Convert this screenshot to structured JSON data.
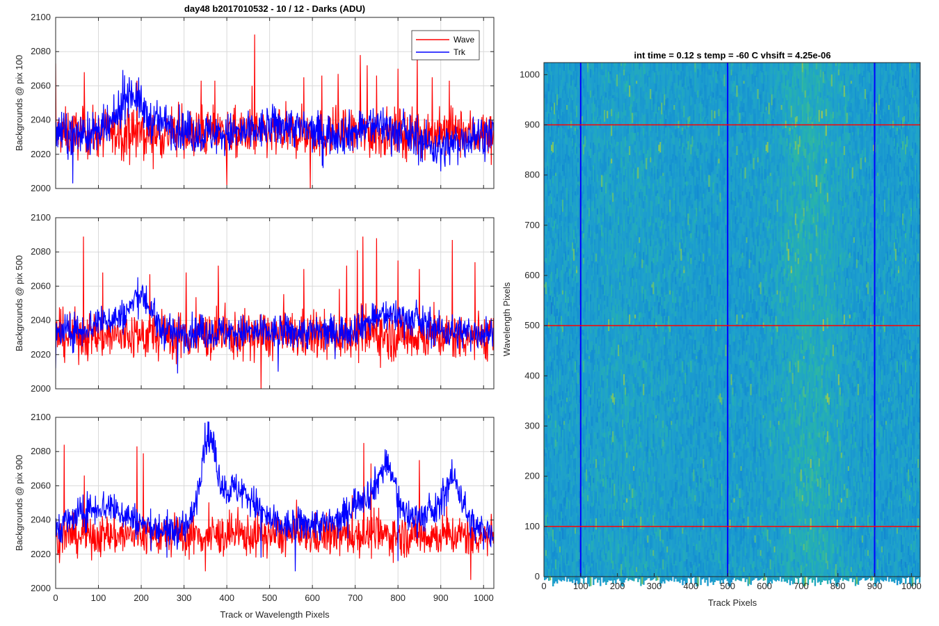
{
  "figure_title": "day48 b2017010532 - 10 / 12 - Darks (ADU)",
  "chart_data": [
    {
      "type": "line",
      "ylabel": "Backgrounds @ pix 100",
      "xlabel": "",
      "xlim": [
        0,
        1024
      ],
      "ylim": [
        2000,
        2100
      ],
      "xticks": [
        0,
        100,
        200,
        300,
        400,
        500,
        600,
        700,
        800,
        900,
        1000
      ],
      "yticks": [
        2000,
        2020,
        2040,
        2060,
        2080,
        2100
      ],
      "grid": true,
      "legend": {
        "placement": "top-right",
        "entries": [
          "Wave",
          "Trk"
        ]
      },
      "series": [
        {
          "name": "Wave",
          "color": "#ff0000",
          "mean": 2032,
          "noise": 7,
          "spikes": [
            [
              0,
              2073
            ],
            [
              67,
              2068
            ],
            [
              190,
              2063
            ],
            [
              340,
              2063
            ],
            [
              372,
              2063
            ],
            [
              459,
              2060
            ],
            [
              465,
              2090
            ],
            [
              580,
              2065
            ],
            [
              622,
              2066
            ],
            [
              660,
              2067
            ],
            [
              712,
              2078
            ],
            [
              728,
              2072
            ],
            [
              750,
              2066
            ],
            [
              800,
              2070
            ],
            [
              845,
              2078
            ],
            [
              880,
              2065
            ],
            [
              920,
              2063
            ],
            [
              1024,
              2062
            ],
            [
              400,
              2002
            ],
            [
              595,
              2000
            ]
          ],
          "bumps": []
        },
        {
          "name": "Trk",
          "color": "#0000ff",
          "mean": 2032,
          "noise": 6,
          "spikes": [
            [
              40,
              2003
            ],
            [
              625,
              2012
            ],
            [
              900,
              2010
            ]
          ],
          "bumps": [
            [
              175,
              25,
              24
            ],
            [
              250,
              30,
              6
            ],
            [
              530,
              40,
              5
            ],
            [
              750,
              30,
              5
            ],
            [
              900,
              40,
              -8
            ]
          ]
        }
      ]
    },
    {
      "type": "line",
      "ylabel": "Backgrounds @ pix 500",
      "xlabel": "",
      "xlim": [
        0,
        1024
      ],
      "ylim": [
        2000,
        2100
      ],
      "xticks": [
        0,
        100,
        200,
        300,
        400,
        500,
        600,
        700,
        800,
        900,
        1000
      ],
      "yticks": [
        2000,
        2020,
        2040,
        2060,
        2080,
        2100
      ],
      "grid": true,
      "series": [
        {
          "name": "Wave",
          "color": "#ff0000",
          "mean": 2031,
          "noise": 7,
          "spikes": [
            [
              65,
              2089
            ],
            [
              110,
              2068
            ],
            [
              220,
              2067
            ],
            [
              305,
              2068
            ],
            [
              380,
              2072
            ],
            [
              480,
              2000
            ],
            [
              580,
              2070
            ],
            [
              680,
              2072
            ],
            [
              705,
              2081
            ],
            [
              718,
              2089
            ],
            [
              750,
              2088
            ],
            [
              800,
              2075
            ],
            [
              850,
              2070
            ],
            [
              927,
              2087
            ],
            [
              980,
              2074
            ],
            [
              1024,
              2062
            ]
          ],
          "bumps": []
        },
        {
          "name": "Trk",
          "color": "#0000ff",
          "mean": 2033,
          "noise": 5,
          "spikes": [
            [
              0,
              2012
            ],
            [
              285,
              2009
            ],
            [
              520,
              2010
            ]
          ],
          "bumps": [
            [
              200,
              22,
              20
            ],
            [
              130,
              40,
              8
            ],
            [
              760,
              40,
              8
            ],
            [
              830,
              40,
              6
            ]
          ]
        }
      ]
    },
    {
      "type": "line",
      "ylabel": "Backgrounds @ pix 900",
      "xlabel": "Track or Wavelength Pixels",
      "xlim": [
        0,
        1024
      ],
      "ylim": [
        2000,
        2100
      ],
      "xticks": [
        0,
        100,
        200,
        300,
        400,
        500,
        600,
        700,
        800,
        900,
        1000
      ],
      "yticks": [
        2000,
        2020,
        2040,
        2060,
        2080,
        2100
      ],
      "grid": true,
      "series": [
        {
          "name": "Wave",
          "color": "#ff0000",
          "mean": 2031,
          "noise": 6,
          "spikes": [
            [
              20,
              2084
            ],
            [
              67,
              2066
            ],
            [
              190,
              2083
            ],
            [
              205,
              2079
            ],
            [
              350,
              2010
            ],
            [
              720,
              2085
            ],
            [
              737,
              2073
            ],
            [
              850,
              2075
            ],
            [
              970,
              2005
            ]
          ],
          "bumps": []
        },
        {
          "name": "Trk",
          "color": "#0000ff",
          "mean": 2033,
          "noise": 5,
          "spikes": [
            [
              260,
              2018
            ],
            [
              480,
              2018
            ],
            [
              560,
              2010
            ],
            [
              800,
              2016
            ]
          ],
          "bumps": [
            [
              355,
              18,
              45
            ],
            [
              420,
              50,
              25
            ],
            [
              110,
              60,
              15
            ],
            [
              720,
              35,
              20
            ],
            [
              775,
              20,
              30
            ],
            [
              930,
              20,
              25
            ],
            [
              870,
              60,
              10
            ],
            [
              600,
              40,
              5
            ]
          ]
        }
      ]
    },
    {
      "type": "heatmap",
      "title": "int time = 0.12 s    temp = -60 C    vhsift = 4.25e-06",
      "xlabel": "Track Pixels",
      "ylabel": "Wavelength Pixels",
      "xlim": [
        0,
        1024
      ],
      "ylim": [
        0,
        1024
      ],
      "xticks": [
        0,
        100,
        200,
        300,
        400,
        500,
        600,
        700,
        800,
        900,
        1000
      ],
      "yticks": [
        0,
        100,
        200,
        300,
        400,
        500,
        600,
        700,
        800,
        900,
        1000
      ],
      "colormap": "parula",
      "base_color": "#1e93c8",
      "vertical_lines": {
        "color": "#0000ff",
        "x": [
          100,
          500,
          900
        ]
      },
      "horizontal_lines": {
        "color": "#ff0000",
        "y": [
          100,
          500,
          900
        ]
      }
    }
  ]
}
